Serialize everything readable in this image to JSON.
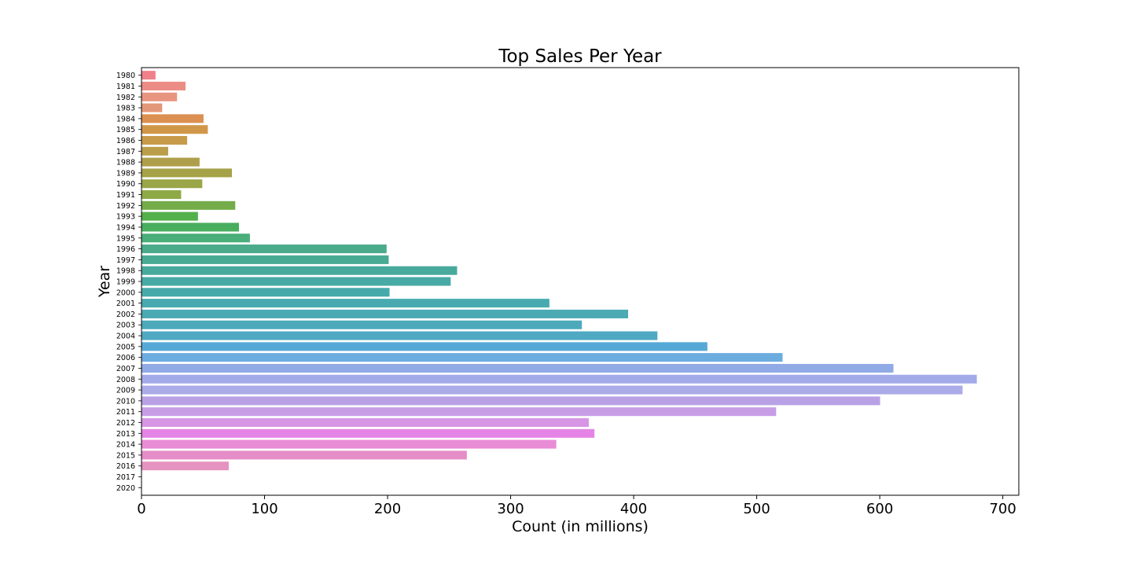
{
  "chart_data": {
    "type": "bar",
    "orientation": "horizontal",
    "title": "Top Sales Per Year",
    "xlabel": "Count (in millions)",
    "ylabel": "Year",
    "xlim": [
      0,
      713
    ],
    "xticks": [
      0,
      100,
      200,
      300,
      400,
      500,
      600,
      700
    ],
    "grid": false,
    "legend": "none",
    "categories": [
      "1980",
      "1981",
      "1982",
      "1983",
      "1984",
      "1985",
      "1986",
      "1987",
      "1988",
      "1989",
      "1990",
      "1991",
      "1992",
      "1993",
      "1994",
      "1995",
      "1996",
      "1997",
      "1998",
      "1999",
      "2000",
      "2001",
      "2002",
      "2003",
      "2004",
      "2005",
      "2006",
      "2007",
      "2008",
      "2009",
      "2010",
      "2011",
      "2012",
      "2013",
      "2014",
      "2015",
      "2016",
      "2017",
      "2020"
    ],
    "values": [
      11.4,
      35.8,
      28.9,
      16.8,
      50.4,
      53.9,
      37.1,
      21.7,
      47.2,
      73.5,
      49.4,
      32.2,
      76.2,
      45.9,
      79.2,
      88.1,
      199.2,
      200.9,
      256.5,
      251.3,
      201.6,
      331.5,
      395.5,
      357.9,
      419.3,
      459.9,
      521.0,
      611.1,
      678.9,
      667.3,
      600.3,
      515.8,
      363.5,
      368.1,
      337.1,
      264.4,
      70.9,
      0.1,
      0.3
    ],
    "colors": [
      "#f0808a",
      "#ec8d85",
      "#e89580",
      "#e3987a",
      "#db8f50",
      "#d19748",
      "#c79b4a",
      "#bb9e4a",
      "#b09f4a",
      "#a5a248",
      "#9aa647",
      "#8daa47",
      "#75ac4a",
      "#53b04b",
      "#48ae5e",
      "#49ae79",
      "#4baa8a",
      "#49aa94",
      "#47aa9c",
      "#47aaa4",
      "#47aaaa",
      "#48aab0",
      "#4baab4",
      "#4caabb",
      "#4fa9c3",
      "#56a9d6",
      "#6cacdf",
      "#8faae5",
      "#a3aaea",
      "#acabe9",
      "#b9a1e6",
      "#c79ee6",
      "#d795e6",
      "#e484e6",
      "#e88cd6",
      "#e58dc8",
      "#e593c0",
      "#ee8fa8",
      "#f08aa0"
    ]
  }
}
